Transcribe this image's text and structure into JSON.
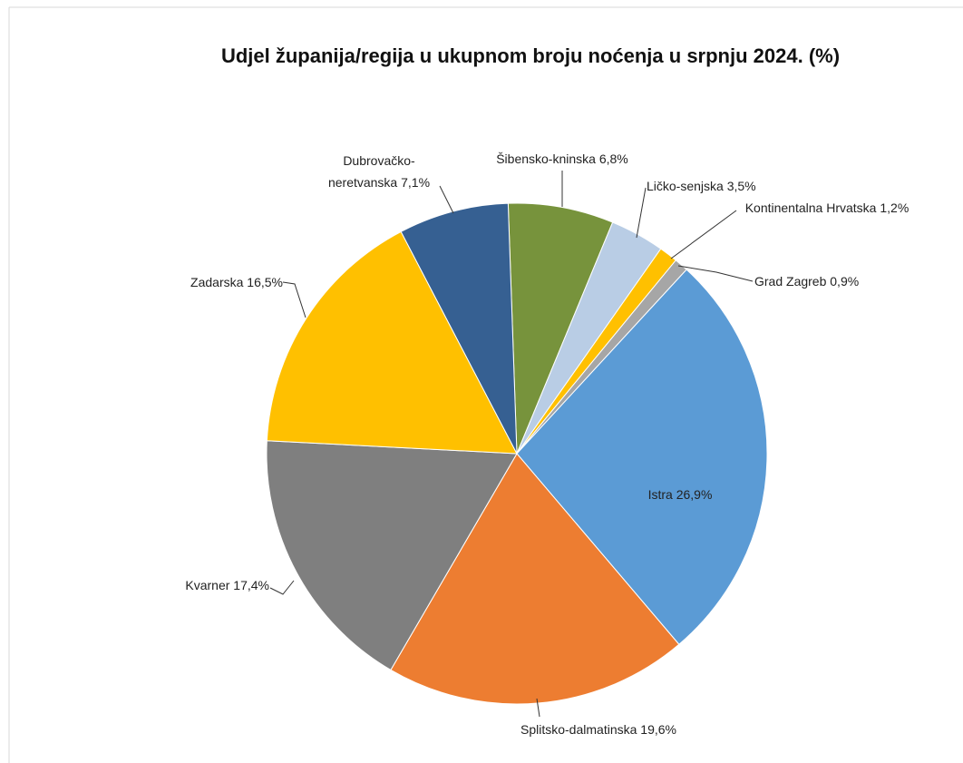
{
  "chart_data": {
    "type": "pie",
    "title": "Udjel županija/regija u ukupnom broju noćenja u srpnju 2024. (%)",
    "categories": [
      "Šibensko-kninska",
      "Ličko-senjska",
      "Kontinentalna Hrvatska",
      "Grad Zagreb",
      "Istra",
      "Splitsko-dalmatinska",
      "Kvarner",
      "Zadarska",
      "Dubrovačko-neretvanska"
    ],
    "values": [
      6.8,
      3.5,
      1.2,
      0.9,
      26.9,
      19.6,
      17.4,
      16.5,
      7.1
    ],
    "value_labels": [
      "6,8%",
      "3,5%",
      "1,2%",
      "0,9%",
      "26,9%",
      "19,6%",
      "17,4%",
      "16,5%",
      "7,1%"
    ],
    "colors": [
      "#77933c",
      "#b9cde5",
      "#ffc000",
      "#a6a6a6",
      "#5b9bd5",
      "#ed7d31",
      "#7f7f7f",
      "#ffc000",
      "#366092"
    ]
  }
}
